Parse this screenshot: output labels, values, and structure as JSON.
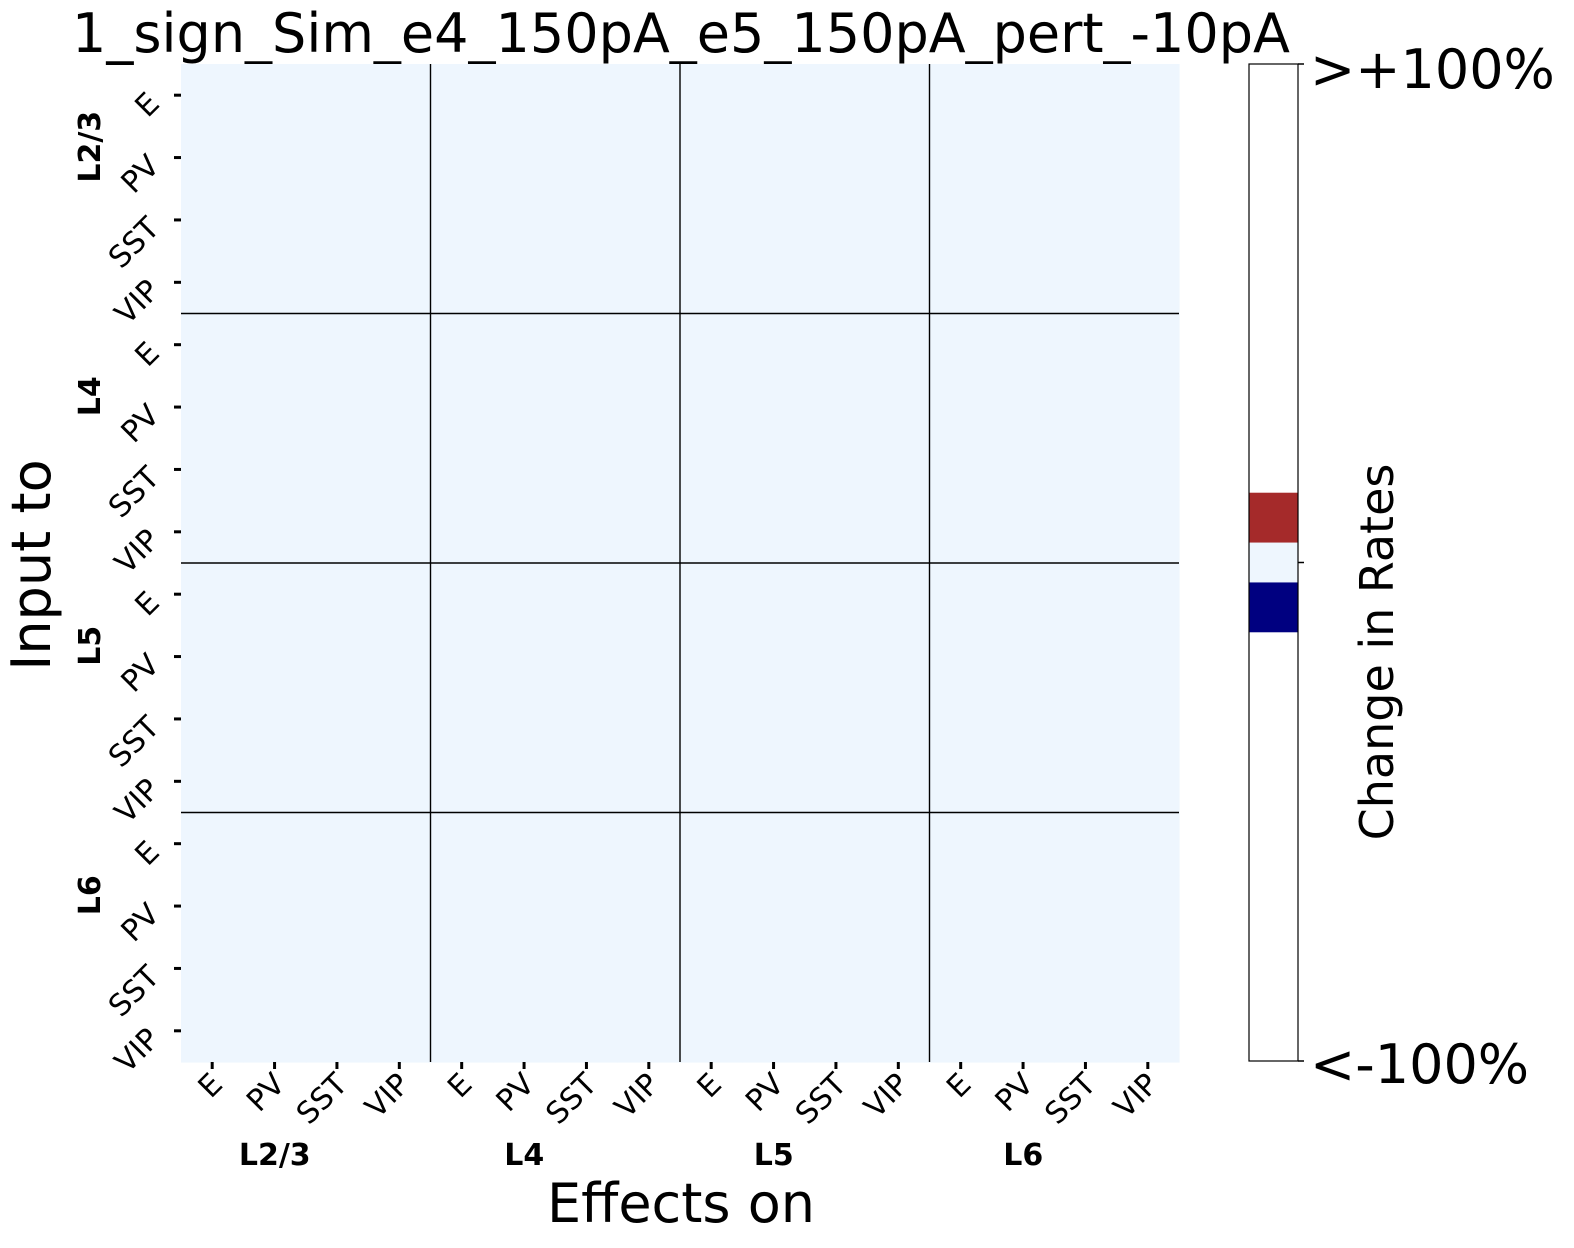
{
  "chart_data": {
    "type": "heatmap",
    "title": "1_sign_Sim_e4_150pA_e5_150pA_pert_-10pA",
    "xlabel": "Effects on",
    "ylabel": "Input to",
    "cell_labels": [
      "E",
      "PV",
      "SST",
      "VIP",
      "E",
      "PV",
      "SST",
      "VIP",
      "E",
      "PV",
      "SST",
      "VIP",
      "E",
      "PV",
      "SST",
      "VIP"
    ],
    "groups": [
      "L2/3",
      "L4",
      "L5",
      "L6"
    ],
    "values": [
      [
        0,
        0,
        0,
        0,
        0,
        0,
        0,
        0,
        0,
        0,
        0,
        0,
        0,
        0,
        0,
        0
      ],
      [
        0,
        0,
        0,
        0,
        0,
        0,
        0,
        0,
        0,
        0,
        0,
        0,
        0,
        0,
        0,
        0
      ],
      [
        0,
        0,
        0,
        0,
        0,
        0,
        0,
        0,
        0,
        0,
        0,
        0,
        0,
        0,
        0,
        0
      ],
      [
        0,
        0,
        0,
        0,
        0,
        0,
        0,
        0,
        0,
        0,
        0,
        0,
        0,
        0,
        0,
        0
      ],
      [
        0,
        0,
        0,
        0,
        0,
        0,
        0,
        0,
        0,
        0,
        0,
        0,
        0,
        0,
        0,
        0
      ],
      [
        0,
        0,
        0,
        0,
        0,
        0,
        0,
        0,
        0,
        0,
        0,
        0,
        0,
        0,
        0,
        0
      ],
      [
        0,
        0,
        0,
        0,
        0,
        0,
        0,
        0,
        0,
        0,
        0,
        0,
        0,
        0,
        0,
        0
      ],
      [
        0,
        0,
        0,
        0,
        0,
        0,
        0,
        0,
        0,
        0,
        0,
        0,
        0,
        0,
        0,
        0
      ],
      [
        0,
        0,
        0,
        0,
        0,
        0,
        0,
        0,
        0,
        0,
        0,
        0,
        0,
        0,
        0,
        0
      ],
      [
        0,
        0,
        0,
        0,
        0,
        0,
        0,
        0,
        0,
        0,
        0,
        0,
        0,
        0,
        0,
        0
      ],
      [
        0,
        0,
        0,
        0,
        0,
        0,
        0,
        0,
        0,
        0,
        0,
        0,
        0,
        0,
        0,
        0
      ],
      [
        0,
        0,
        0,
        0,
        0,
        0,
        0,
        0,
        0,
        0,
        0,
        0,
        0,
        0,
        0,
        0
      ],
      [
        0,
        0,
        0,
        0,
        0,
        0,
        0,
        0,
        0,
        0,
        0,
        0,
        0,
        0,
        0,
        0
      ],
      [
        0,
        0,
        0,
        0,
        0,
        0,
        0,
        0,
        0,
        0,
        0,
        0,
        0,
        0,
        0,
        0
      ],
      [
        0,
        0,
        0,
        0,
        0,
        0,
        0,
        0,
        0,
        0,
        0,
        0,
        0,
        0,
        0,
        0
      ],
      [
        0,
        0,
        0,
        0,
        0,
        0,
        0,
        0,
        0,
        0,
        0,
        0,
        0,
        0,
        0,
        0
      ]
    ],
    "colorbar": {
      "label": "Change in Rates",
      "top_label": ">+100%",
      "bottom_label": "<-100%",
      "bands": [
        {
          "from": 0.0,
          "to": 0.43,
          "color": "#ffffff"
        },
        {
          "from": 0.43,
          "to": 0.48,
          "color": "#a52a2a"
        },
        {
          "from": 0.48,
          "to": 0.52,
          "color": "#eef6fe"
        },
        {
          "from": 0.52,
          "to": 0.57,
          "color": "#000080"
        },
        {
          "from": 0.57,
          "to": 1.0,
          "color": "#ffffff"
        }
      ]
    },
    "cell_color": "#eef6fe",
    "grid": false
  }
}
